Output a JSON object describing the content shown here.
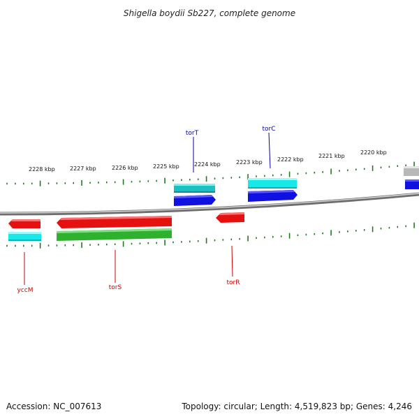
{
  "title": "Shigella boydii Sb227, complete genome",
  "accession": "Accession: NC_007613",
  "summary": "Topology: circular; Length: 4,519,823 bp; Genes: 4,246",
  "colors": {
    "backbone": "#8a8a8a",
    "tick": "#1f7a1f",
    "gene_red": "#e51010",
    "gene_green": "#2fb02f",
    "gene_cyan": "#18e8e8",
    "gene_teal": "#1cc0c0",
    "gene_blue": "#1010e0",
    "gene_grey": "#b8b8b8",
    "label_red": "#cc0000",
    "label_blue": "#0000aa"
  },
  "kbp_labels": [
    "2228 kbp",
    "2227 kbp",
    "2226 kbp",
    "2225 kbp",
    "2224 kbp",
    "2223 kbp",
    "2222 kbp",
    "2221 kbp",
    "2220 kbp"
  ],
  "gene_labels": [
    {
      "name": "torT",
      "color": "label_blue"
    },
    {
      "name": "torC",
      "color": "label_blue"
    },
    {
      "name": "yccM",
      "color": "label_red"
    },
    {
      "name": "torS",
      "color": "label_red"
    },
    {
      "name": "torR",
      "color": "label_red"
    }
  ]
}
